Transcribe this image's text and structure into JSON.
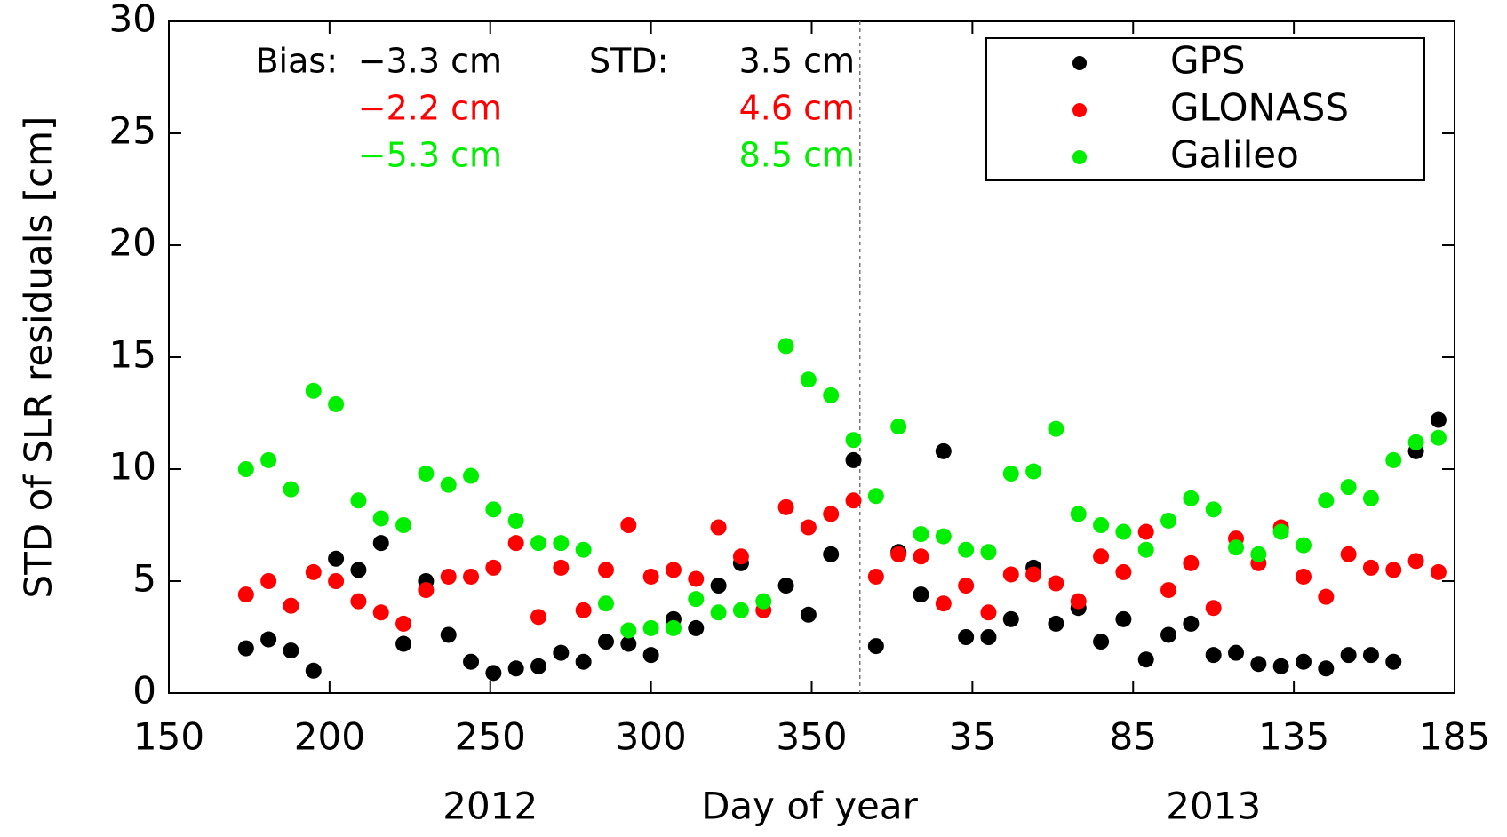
{
  "chart_data": {
    "type": "scatter",
    "xlabel": "Day of year",
    "ylabel": "STD of SLR residuals [cm]",
    "period_labels": [
      {
        "value": 250,
        "label": "2012"
      },
      {
        "value": 475,
        "label": "2013"
      }
    ],
    "year_boundary": 365,
    "xlim": [
      150,
      550
    ],
    "ylim": [
      0,
      30
    ],
    "xticks": [
      150,
      200,
      250,
      300,
      350,
      {
        "value": 400,
        "label": "35"
      },
      {
        "value": 450,
        "label": "85"
      },
      {
        "value": 500,
        "label": "135"
      },
      {
        "value": 550,
        "label": "185"
      }
    ],
    "yticks": [
      0,
      5,
      10,
      15,
      20,
      25,
      30
    ],
    "grid": false,
    "legend": "upper right",
    "bias_title": "Bias:",
    "std_title": "STD:",
    "series": [
      {
        "name": "GPS",
        "color": "#000000",
        "bias": "−3.3 cm",
        "std": "3.5 cm",
        "x": [
          174,
          181,
          188,
          195,
          202,
          209,
          216,
          223,
          230,
          237,
          244,
          251,
          258,
          265,
          272,
          279,
          286,
          293,
          300,
          307,
          314,
          321,
          328,
          342,
          349,
          356,
          363,
          370,
          377,
          384,
          391,
          398,
          405,
          412,
          419,
          426,
          433,
          440,
          447,
          454,
          461,
          468,
          475,
          482,
          489,
          496,
          503,
          510,
          517,
          524,
          531,
          538,
          545
        ],
        "values": [
          2.0,
          2.4,
          1.9,
          1.0,
          6.0,
          5.5,
          6.7,
          2.2,
          5.0,
          2.6,
          1.4,
          0.9,
          1.1,
          1.2,
          1.8,
          1.4,
          2.3,
          2.2,
          1.7,
          3.3,
          2.9,
          4.8,
          5.8,
          4.8,
          3.5,
          6.2,
          10.4,
          2.1,
          6.3,
          4.4,
          10.8,
          2.5,
          2.5,
          3.3,
          5.6,
          3.1,
          3.8,
          2.3,
          3.3,
          1.5,
          2.6,
          3.1,
          1.7,
          1.8,
          1.3,
          1.2,
          1.4,
          1.1,
          1.7,
          1.7,
          1.4,
          10.8,
          12.2
        ]
      },
      {
        "name": "GLONASS",
        "color": "#ff0000",
        "bias": "−2.2 cm",
        "std": "4.6 cm",
        "x": [
          174,
          181,
          188,
          195,
          202,
          209,
          216,
          223,
          230,
          237,
          244,
          251,
          258,
          265,
          272,
          279,
          286,
          293,
          300,
          307,
          314,
          321,
          328,
          335,
          342,
          349,
          356,
          363,
          370,
          377,
          384,
          391,
          398,
          405,
          412,
          419,
          426,
          433,
          440,
          447,
          454,
          461,
          468,
          475,
          482,
          489,
          496,
          503,
          510,
          517,
          524,
          531,
          538,
          545
        ],
        "values": [
          4.4,
          5.0,
          3.9,
          5.4,
          5.0,
          4.1,
          3.6,
          3.1,
          4.6,
          5.2,
          5.2,
          5.6,
          6.7,
          3.4,
          5.6,
          3.7,
          5.5,
          7.5,
          5.2,
          5.5,
          5.1,
          7.4,
          6.1,
          3.7,
          8.3,
          7.4,
          8.0,
          8.6,
          5.2,
          6.2,
          6.1,
          4.0,
          4.8,
          3.6,
          5.3,
          5.3,
          4.9,
          4.1,
          6.1,
          5.4,
          7.2,
          4.6,
          5.8,
          3.8,
          6.9,
          5.8,
          7.4,
          5.2,
          4.3,
          6.2,
          5.6,
          5.5,
          5.9,
          5.4
        ]
      },
      {
        "name": "Galileo",
        "color": "#00ee00",
        "bias": "−5.3 cm",
        "std": "8.5 cm",
        "x": [
          174,
          181,
          188,
          195,
          202,
          209,
          216,
          223,
          230,
          237,
          244,
          251,
          258,
          265,
          272,
          279,
          286,
          293,
          300,
          307,
          314,
          321,
          328,
          335,
          342,
          349,
          356,
          363,
          370,
          377,
          384,
          391,
          398,
          405,
          412,
          419,
          426,
          433,
          440,
          447,
          454,
          461,
          468,
          475,
          482,
          489,
          496,
          503,
          510,
          517,
          524,
          531,
          538,
          545
        ],
        "values": [
          10.0,
          10.4,
          9.1,
          13.5,
          12.9,
          8.6,
          7.8,
          7.5,
          9.8,
          9.3,
          9.7,
          8.2,
          7.7,
          6.7,
          6.7,
          6.4,
          4.0,
          2.8,
          2.9,
          2.9,
          4.2,
          3.6,
          3.7,
          4.1,
          15.5,
          14.0,
          13.3,
          11.3,
          8.8,
          11.9,
          7.1,
          7.0,
          6.4,
          6.3,
          9.8,
          9.9,
          11.8,
          8.0,
          7.5,
          7.2,
          6.4,
          7.7,
          8.7,
          8.2,
          6.5,
          6.2,
          7.2,
          6.6,
          8.6,
          9.2,
          8.7,
          10.4,
          11.2,
          11.4
        ]
      }
    ]
  }
}
